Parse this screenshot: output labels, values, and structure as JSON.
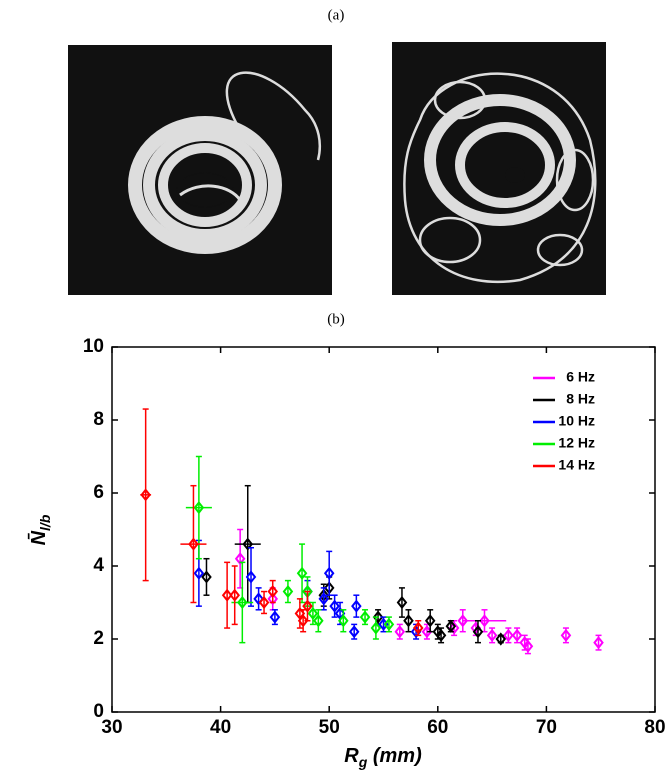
{
  "panel_labels": [
    "(a)",
    "(b)"
  ],
  "chart_data": {
    "type": "scatter",
    "xlabel": {
      "text": "R",
      "subscript": "g",
      "suffix": " (mm)"
    },
    "ylabel": {
      "text": "N̄",
      "subscript": "l/b"
    },
    "xlim": [
      30,
      80
    ],
    "xticks": [
      30,
      40,
      50,
      60,
      70,
      80
    ],
    "ylim": [
      0,
      10
    ],
    "yticks": [
      0,
      2,
      4,
      6,
      8,
      10
    ],
    "legend": "upper right",
    "series": [
      {
        "name": "6 Hz",
        "color": "#ff00ff",
        "x": [
          41.8,
          44.8,
          56.5,
          59,
          61.5,
          62.3,
          63.5,
          64.3,
          65,
          66.5,
          67.3,
          68,
          68.3,
          71.8,
          74.8
        ],
        "values": [
          4.2,
          3.1,
          2.2,
          2.2,
          2.3,
          2.5,
          2.3,
          2.5,
          2.1,
          2.1,
          2.1,
          1.9,
          1.8,
          2.1,
          1.9
        ],
        "yerr": [
          0.8,
          0.3,
          0.2,
          0.2,
          0.2,
          0.3,
          0.2,
          0.3,
          0.2,
          0.2,
          0.2,
          0.2,
          0.2,
          0.2,
          0.2
        ],
        "xerr": [
          null,
          null,
          null,
          null,
          null,
          null,
          null,
          2,
          null,
          null,
          null,
          null,
          null,
          null,
          null
        ]
      },
      {
        "name": "8 Hz",
        "color": "#000000",
        "x": [
          38.7,
          42.5,
          49.5,
          50,
          54.5,
          56.7,
          57.3,
          59.3,
          60,
          60.3,
          61.2,
          63.7,
          65.8
        ],
        "values": [
          3.7,
          4.6,
          3.2,
          3.4,
          2.6,
          3.0,
          2.5,
          2.5,
          2.2,
          2.1,
          2.35,
          2.2,
          2.0
        ],
        "yerr": [
          0.5,
          1.6,
          0.3,
          0.3,
          0.2,
          0.4,
          0.3,
          0.3,
          0.2,
          0.2,
          0.15,
          0.3,
          0.1
        ],
        "xerr": [
          null,
          1.2,
          null,
          null,
          null,
          null,
          null,
          null,
          null,
          null,
          null,
          null,
          null
        ]
      },
      {
        "name": "10 Hz",
        "color": "#0000ff",
        "x": [
          38,
          42.8,
          43.5,
          45,
          48,
          49.5,
          50,
          50.5,
          51,
          52.3,
          52.5,
          55,
          58
        ],
        "values": [
          3.8,
          3.7,
          3.1,
          2.6,
          3.3,
          3.1,
          3.8,
          2.9,
          2.7,
          2.2,
          2.9,
          2.4,
          2.2
        ],
        "yerr": [
          0.9,
          0.8,
          0.3,
          0.2,
          0.3,
          0.3,
          0.6,
          0.3,
          0.3,
          0.2,
          0.3,
          0.2,
          0.2
        ],
        "xerr": [
          null,
          null,
          null,
          null,
          null,
          null,
          null,
          null,
          null,
          null,
          null,
          null,
          null
        ]
      },
      {
        "name": "12 Hz",
        "color": "#00ee00",
        "x": [
          38,
          42,
          46.2,
          47.5,
          48,
          48.5,
          49,
          51.3,
          53.3,
          54.3,
          55.5
        ],
        "values": [
          5.6,
          3.0,
          3.3,
          3.8,
          3.3,
          2.7,
          2.5,
          2.5,
          2.6,
          2.3,
          2.4
        ],
        "yerr": [
          1.4,
          1.1,
          0.3,
          0.8,
          0.4,
          0.3,
          0.3,
          0.3,
          0.2,
          0.3,
          0.2
        ],
        "xerr": [
          1.2,
          1,
          null,
          null,
          null,
          null,
          null,
          null,
          null,
          null,
          null
        ]
      },
      {
        "name": "14 Hz",
        "color": "#ff0000",
        "x": [
          33.1,
          37.5,
          40.6,
          41.3,
          44,
          44.8,
          47.3,
          47.6,
          48,
          58.2
        ],
        "values": [
          5.95,
          4.6,
          3.2,
          3.2,
          3.0,
          3.3,
          2.7,
          2.5,
          2.9,
          2.3
        ],
        "yerr": [
          2.35,
          1.6,
          0.9,
          0.8,
          0.3,
          0.3,
          0.4,
          0.3,
          0.4,
          0.2
        ],
        "xerr": [
          0.5,
          1.2,
          null,
          null,
          null,
          null,
          null,
          null,
          null,
          null
        ]
      }
    ]
  }
}
